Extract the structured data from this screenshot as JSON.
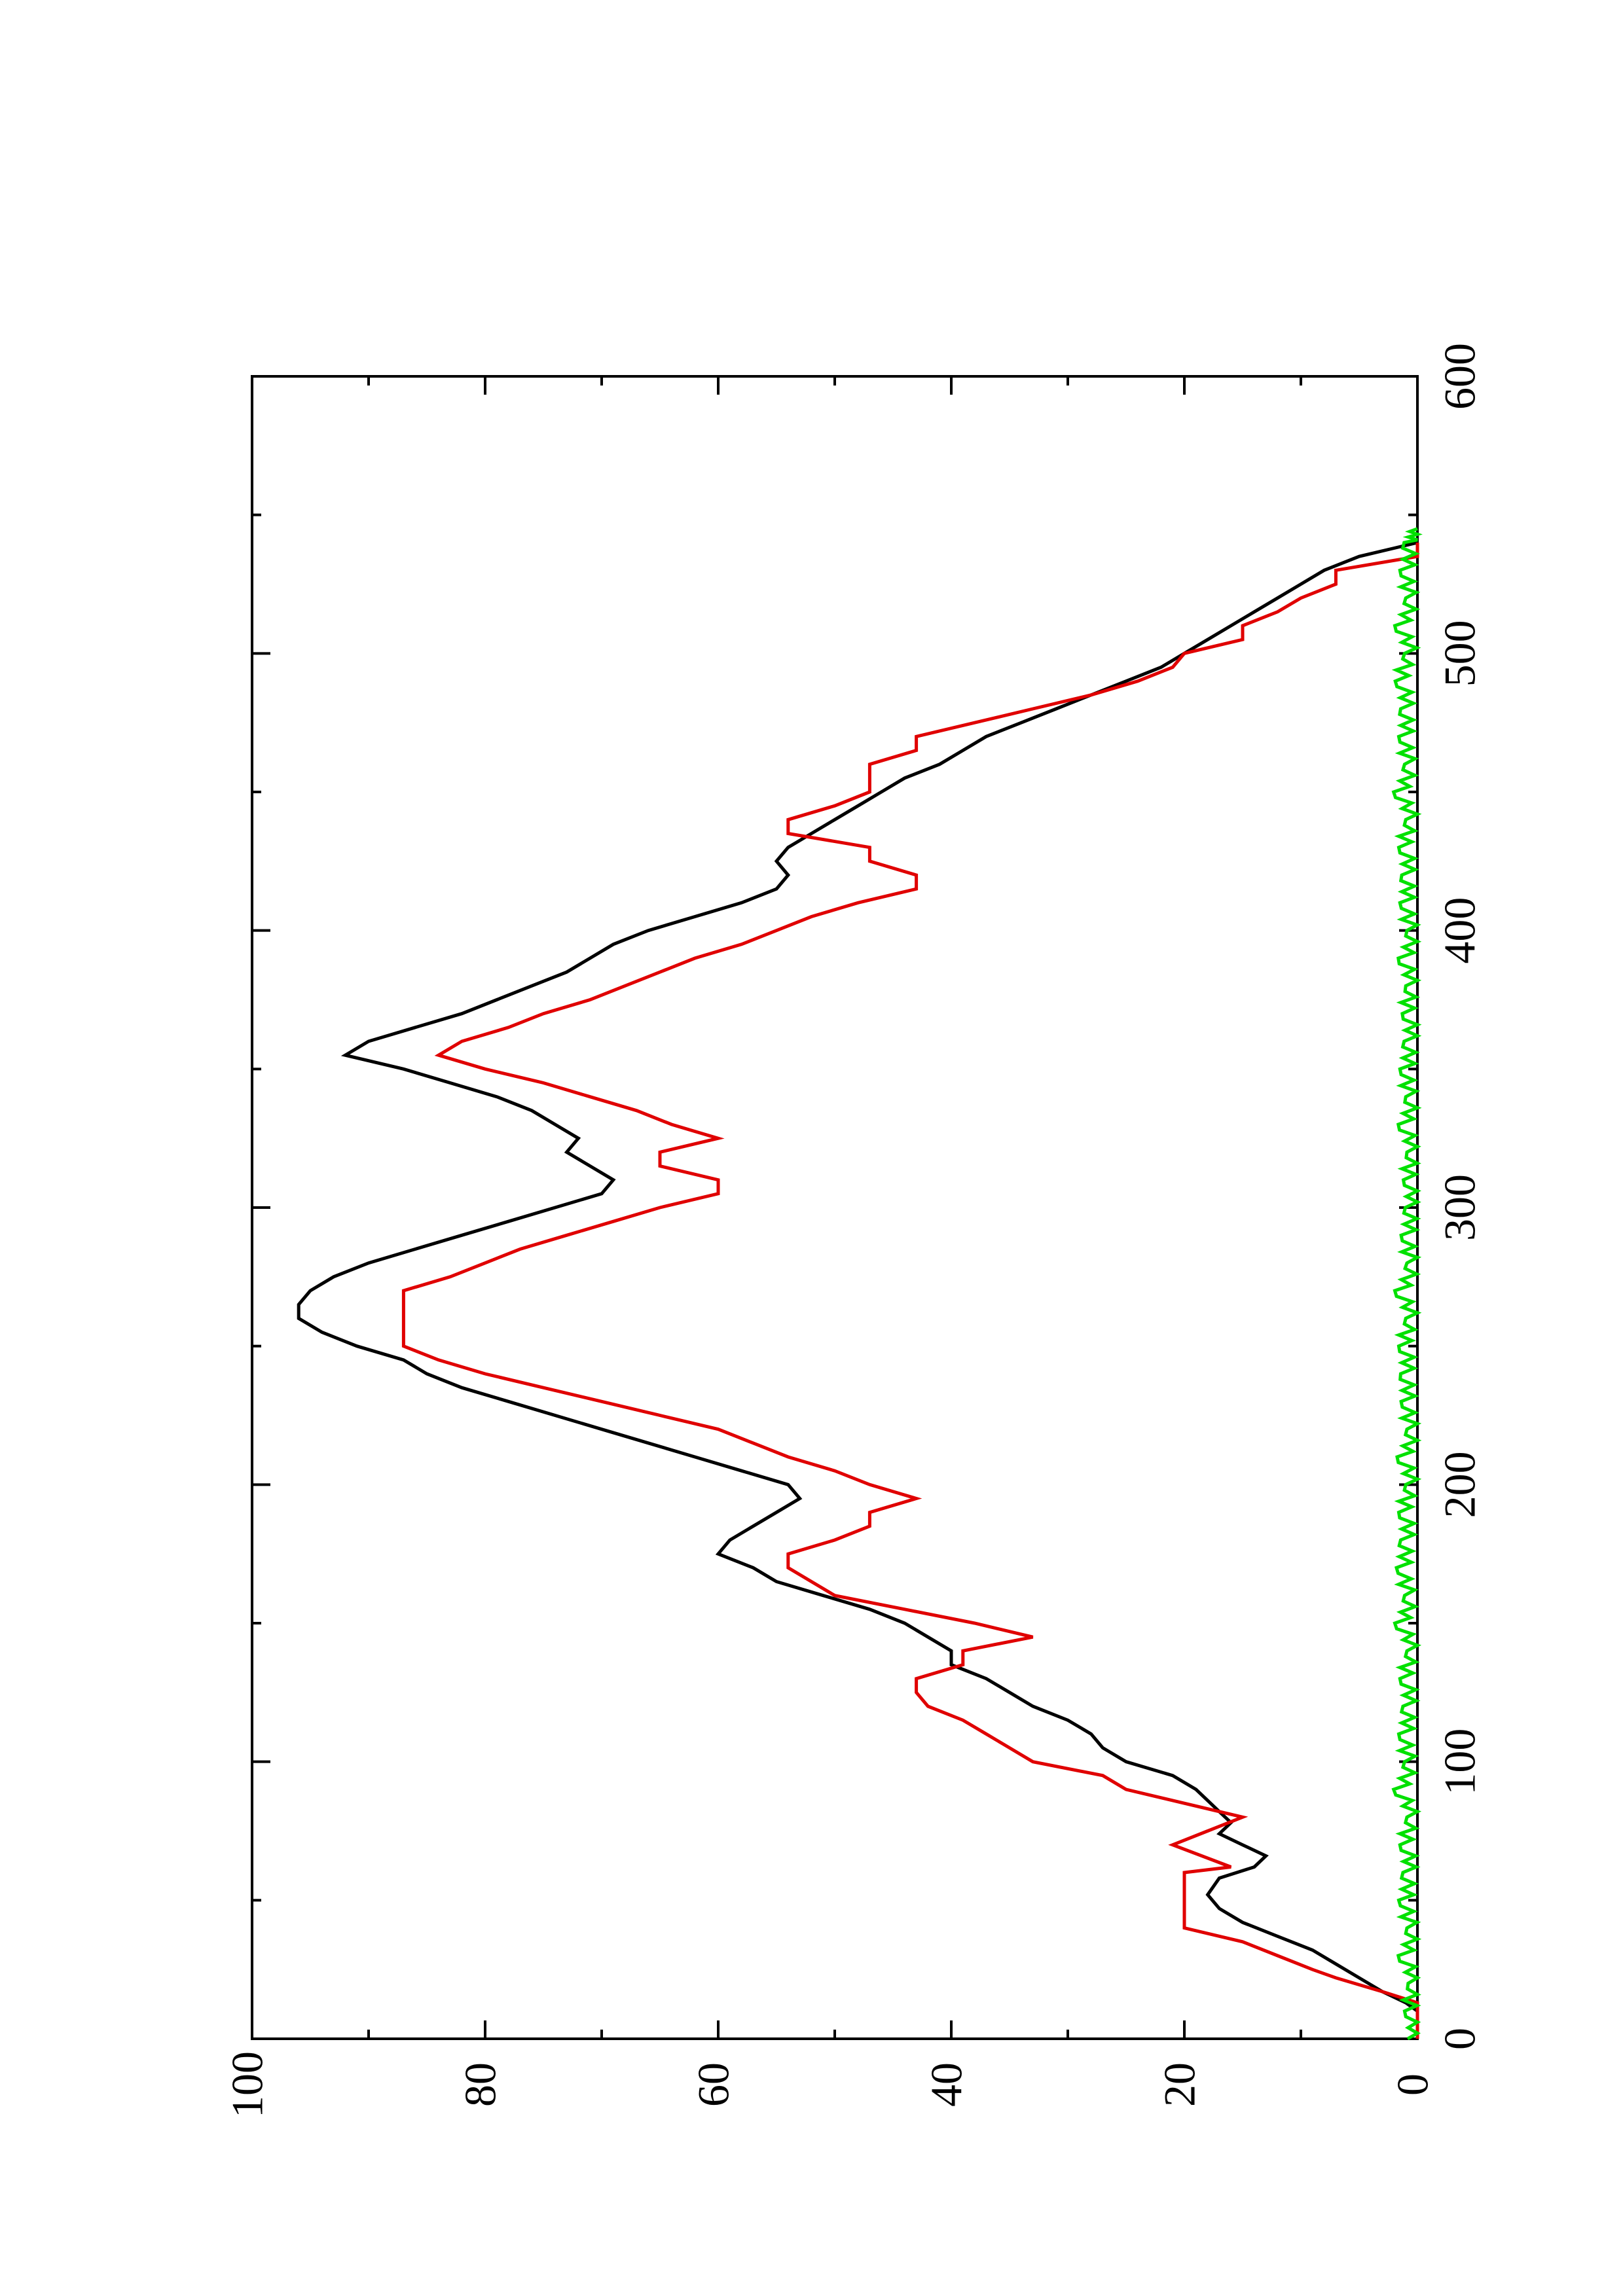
{
  "chart_data": {
    "type": "line",
    "orientation": "rotated 90 degrees counter-clockwise (x axis runs bottom-to-top, y axis runs right-to-left)",
    "title": "",
    "xlabel": "",
    "ylabel": "",
    "xlim": [
      0,
      600
    ],
    "ylim": [
      0,
      100
    ],
    "x_major_ticks": [
      0,
      100,
      200,
      300,
      400,
      500,
      600
    ],
    "x_minor_ticks": [
      50,
      150,
      250,
      350,
      450,
      550
    ],
    "y_major_ticks": [
      0,
      20,
      40,
      60,
      80,
      100
    ],
    "y_minor_ticks": [
      10,
      30,
      50,
      70,
      90
    ],
    "x_tick_labels": [
      "0",
      "100",
      "200",
      "300",
      "400",
      "500",
      "600"
    ],
    "y_tick_labels": [
      "0",
      "20",
      "40",
      "60",
      "80",
      "100"
    ],
    "grid": false,
    "legend": "none",
    "series": [
      {
        "color": "#000000",
        "style": "line",
        "points": [
          [
            0,
            0
          ],
          [
            10,
            0
          ],
          [
            13,
            1
          ],
          [
            17,
            3
          ],
          [
            22,
            5
          ],
          [
            27,
            7
          ],
          [
            32,
            9
          ],
          [
            37,
            12
          ],
          [
            42,
            15
          ],
          [
            47,
            17
          ],
          [
            52,
            18
          ],
          [
            58,
            17
          ],
          [
            62,
            14
          ],
          [
            66,
            13
          ],
          [
            70,
            15
          ],
          [
            74,
            17
          ],
          [
            78,
            16
          ],
          [
            82,
            17
          ],
          [
            86,
            18
          ],
          [
            90,
            19
          ],
          [
            95,
            21
          ],
          [
            100,
            25
          ],
          [
            105,
            27
          ],
          [
            110,
            28
          ],
          [
            115,
            30
          ],
          [
            120,
            33
          ],
          [
            125,
            35
          ],
          [
            130,
            37
          ],
          [
            135,
            40
          ],
          [
            140,
            40
          ],
          [
            145,
            42
          ],
          [
            150,
            44
          ],
          [
            155,
            47
          ],
          [
            160,
            51
          ],
          [
            165,
            55
          ],
          [
            170,
            57
          ],
          [
            175,
            60
          ],
          [
            180,
            59
          ],
          [
            185,
            57
          ],
          [
            190,
            55
          ],
          [
            195,
            53
          ],
          [
            200,
            54
          ],
          [
            205,
            58
          ],
          [
            210,
            62
          ],
          [
            215,
            66
          ],
          [
            220,
            70
          ],
          [
            225,
            74
          ],
          [
            230,
            78
          ],
          [
            235,
            82
          ],
          [
            240,
            85
          ],
          [
            245,
            87
          ],
          [
            250,
            91
          ],
          [
            255,
            94
          ],
          [
            260,
            96
          ],
          [
            265,
            96
          ],
          [
            270,
            95
          ],
          [
            275,
            93
          ],
          [
            280,
            90
          ],
          [
            285,
            86
          ],
          [
            290,
            82
          ],
          [
            295,
            78
          ],
          [
            300,
            74
          ],
          [
            305,
            70
          ],
          [
            310,
            69
          ],
          [
            315,
            71
          ],
          [
            320,
            73
          ],
          [
            325,
            72
          ],
          [
            330,
            74
          ],
          [
            335,
            76
          ],
          [
            340,
            79
          ],
          [
            345,
            83
          ],
          [
            350,
            87
          ],
          [
            355,
            92
          ],
          [
            360,
            90
          ],
          [
            365,
            86
          ],
          [
            370,
            82
          ],
          [
            375,
            79
          ],
          [
            380,
            76
          ],
          [
            385,
            73
          ],
          [
            390,
            71
          ],
          [
            395,
            69
          ],
          [
            400,
            66
          ],
          [
            405,
            62
          ],
          [
            410,
            58
          ],
          [
            415,
            55
          ],
          [
            420,
            54
          ],
          [
            425,
            55
          ],
          [
            430,
            54
          ],
          [
            435,
            52
          ],
          [
            440,
            50
          ],
          [
            445,
            48
          ],
          [
            450,
            46
          ],
          [
            455,
            44
          ],
          [
            460,
            41
          ],
          [
            465,
            39
          ],
          [
            470,
            37
          ],
          [
            475,
            34
          ],
          [
            480,
            31
          ],
          [
            485,
            28
          ],
          [
            490,
            25
          ],
          [
            495,
            22
          ],
          [
            500,
            20
          ],
          [
            505,
            18
          ],
          [
            510,
            16
          ],
          [
            515,
            14
          ],
          [
            520,
            12
          ],
          [
            525,
            10
          ],
          [
            530,
            8
          ],
          [
            535,
            5
          ],
          [
            538,
            2
          ],
          [
            540,
            0
          ]
        ]
      },
      {
        "color": "#e00000",
        "style": "step",
        "points": [
          [
            0,
            0
          ],
          [
            13,
            0
          ],
          [
            17,
            3
          ],
          [
            22,
            7
          ],
          [
            25,
            9
          ],
          [
            30,
            12
          ],
          [
            35,
            15
          ],
          [
            40,
            20
          ],
          [
            60,
            20
          ],
          [
            62,
            16
          ],
          [
            70,
            21
          ],
          [
            75,
            18
          ],
          [
            80,
            15
          ],
          [
            85,
            20
          ],
          [
            90,
            25
          ],
          [
            95,
            27
          ],
          [
            100,
            33
          ],
          [
            105,
            35
          ],
          [
            110,
            37
          ],
          [
            115,
            39
          ],
          [
            120,
            42
          ],
          [
            125,
            43
          ],
          [
            130,
            43
          ],
          [
            135,
            39
          ],
          [
            140,
            39
          ],
          [
            145,
            33
          ],
          [
            150,
            38
          ],
          [
            155,
            44
          ],
          [
            160,
            50
          ],
          [
            170,
            54
          ],
          [
            175,
            54
          ],
          [
            180,
            50
          ],
          [
            185,
            47
          ],
          [
            190,
            47
          ],
          [
            195,
            43
          ],
          [
            200,
            47
          ],
          [
            205,
            50
          ],
          [
            210,
            54
          ],
          [
            215,
            57
          ],
          [
            220,
            60
          ],
          [
            225,
            65
          ],
          [
            230,
            70
          ],
          [
            235,
            75
          ],
          [
            240,
            80
          ],
          [
            245,
            84
          ],
          [
            250,
            87
          ],
          [
            270,
            87
          ],
          [
            275,
            83
          ],
          [
            280,
            80
          ],
          [
            285,
            77
          ],
          [
            290,
            73
          ],
          [
            295,
            69
          ],
          [
            300,
            65
          ],
          [
            305,
            60
          ],
          [
            310,
            60
          ],
          [
            315,
            65
          ],
          [
            320,
            65
          ],
          [
            325,
            60
          ],
          [
            330,
            64
          ],
          [
            335,
            67
          ],
          [
            340,
            71
          ],
          [
            345,
            75
          ],
          [
            350,
            80
          ],
          [
            355,
            84
          ],
          [
            360,
            82
          ],
          [
            365,
            78
          ],
          [
            370,
            75
          ],
          [
            375,
            71
          ],
          [
            380,
            68
          ],
          [
            385,
            65
          ],
          [
            390,
            62
          ],
          [
            395,
            58
          ],
          [
            400,
            55
          ],
          [
            405,
            52
          ],
          [
            410,
            48
          ],
          [
            415,
            43
          ],
          [
            420,
            43
          ],
          [
            425,
            47
          ],
          [
            430,
            47
          ],
          [
            435,
            54
          ],
          [
            440,
            54
          ],
          [
            445,
            50
          ],
          [
            450,
            47
          ],
          [
            460,
            47
          ],
          [
            465,
            43
          ],
          [
            470,
            43
          ],
          [
            475,
            38
          ],
          [
            480,
            33
          ],
          [
            485,
            28
          ],
          [
            490,
            24
          ],
          [
            495,
            21
          ],
          [
            500,
            20
          ],
          [
            505,
            15
          ],
          [
            510,
            15
          ],
          [
            515,
            12
          ],
          [
            520,
            10
          ],
          [
            525,
            7
          ],
          [
            530,
            7
          ],
          [
            535,
            0
          ],
          [
            540,
            0
          ]
        ]
      },
      {
        "color": "#00e000",
        "style": "noise",
        "points": [
          [
            0,
            0
          ],
          [
            10,
            0.5
          ],
          [
            20,
            0.2
          ],
          [
            30,
            0.8
          ],
          [
            40,
            0.3
          ],
          [
            50,
            1.0
          ],
          [
            60,
            0.4
          ],
          [
            70,
            0.9
          ],
          [
            80,
            0.3
          ],
          [
            90,
            1.2
          ],
          [
            100,
            0.5
          ],
          [
            110,
            1.0
          ],
          [
            120,
            0.4
          ],
          [
            130,
            0.9
          ],
          [
            140,
            0.3
          ],
          [
            150,
            1.1
          ],
          [
            160,
            0.5
          ],
          [
            170,
            1.2
          ],
          [
            180,
            0.6
          ],
          [
            190,
            1.0
          ],
          [
            200,
            0.4
          ],
          [
            210,
            0.9
          ],
          [
            220,
            0.3
          ],
          [
            230,
            0.8
          ],
          [
            240,
            0.6
          ],
          [
            250,
            1.0
          ],
          [
            260,
            0.4
          ],
          [
            270,
            1.1
          ],
          [
            280,
            0.3
          ],
          [
            290,
            0.8
          ],
          [
            300,
            0.2
          ],
          [
            310,
            0.6
          ],
          [
            320,
            0.3
          ],
          [
            330,
            0.8
          ],
          [
            340,
            0.4
          ],
          [
            350,
            0.9
          ],
          [
            360,
            0.3
          ],
          [
            370,
            0.7
          ],
          [
            380,
            0.4
          ],
          [
            390,
            0.8
          ],
          [
            400,
            0.3
          ],
          [
            410,
            0.9
          ],
          [
            420,
            0.5
          ],
          [
            430,
            1.0
          ],
          [
            440,
            0.4
          ],
          [
            450,
            1.2
          ],
          [
            460,
            0.5
          ],
          [
            470,
            1.0
          ],
          [
            480,
            0.6
          ],
          [
            490,
            1.3
          ],
          [
            500,
            0.5
          ],
          [
            510,
            1.1
          ],
          [
            520,
            0.4
          ],
          [
            530,
            0.9
          ],
          [
            540,
            0.3
          ],
          [
            545,
            0
          ]
        ]
      }
    ]
  }
}
